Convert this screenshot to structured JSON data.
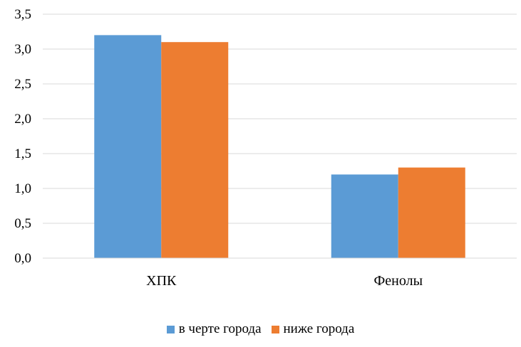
{
  "chart_data": {
    "type": "bar",
    "categories": [
      "ХПК",
      "Фенолы"
    ],
    "series": [
      {
        "name": "в черте города",
        "color": "#5B9BD5",
        "values": [
          3.2,
          1.2
        ]
      },
      {
        "name": "ниже города",
        "color": "#ED7D31",
        "values": [
          3.1,
          1.3
        ]
      }
    ],
    "ylim": [
      0,
      3.5
    ],
    "yticks": [
      "0,0",
      "0,5",
      "1,0",
      "1,5",
      "2,0",
      "2,5",
      "3,0",
      "3,5"
    ],
    "title": "",
    "xlabel": "",
    "ylabel": "",
    "grid": true,
    "legend_position": "bottom"
  }
}
